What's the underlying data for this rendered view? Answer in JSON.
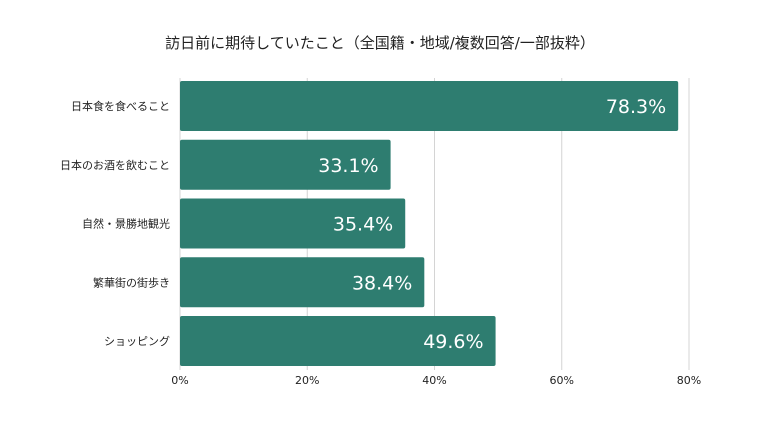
{
  "chart_data": {
    "type": "bar",
    "orientation": "horizontal",
    "title": "訪日前に期待していたこと（全国籍・地域/複数回答/一部抜粋）",
    "categories": [
      "日本食を食べること",
      "日本のお酒を飲むこと",
      "自然・景勝地観光",
      "繁華街の街歩き",
      "ショッピング"
    ],
    "values": [
      78.3,
      33.1,
      35.4,
      38.4,
      49.6
    ],
    "data_labels": [
      "78.3%",
      "33.1%",
      "35.4%",
      "38.4%",
      "49.6%"
    ],
    "xlim": [
      0,
      80
    ],
    "xticks": [
      0,
      20,
      40,
      60,
      80
    ],
    "xtick_labels": [
      "0%",
      "20%",
      "40%",
      "60%",
      "80%"
    ],
    "grid": true,
    "legend": "none",
    "bar_color": "#2e7d70"
  }
}
